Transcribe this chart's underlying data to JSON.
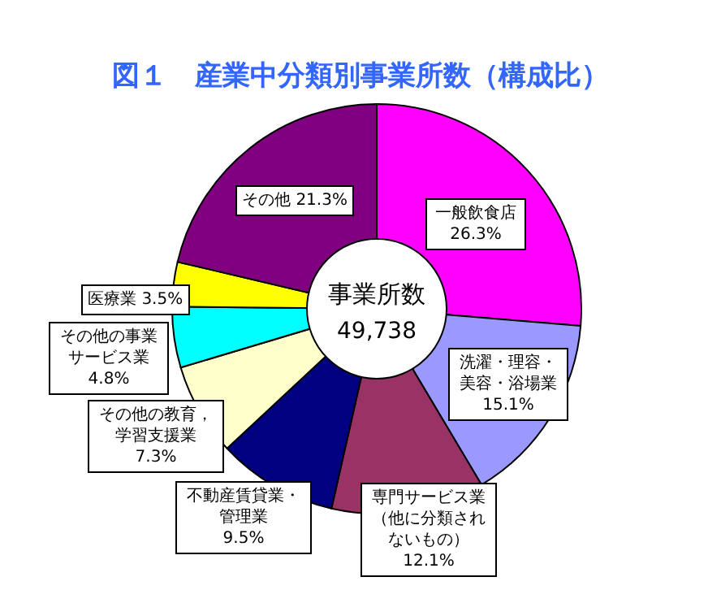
{
  "chart_data": {
    "type": "donut",
    "title": "図１　産業中分類別事業所数（構成比）",
    "categories": [
      "一般飲食店",
      "洗濯・理容・美容・浴場業",
      "専門サービス業（他に分類されないもの）",
      "不動産賃貸業・管理業",
      "その他の教育，学習支援業",
      "その他の事業サービス業",
      "医療業",
      "その他"
    ],
    "values": [
      26.3,
      15.1,
      12.1,
      9.5,
      7.3,
      4.8,
      3.5,
      21.3
    ],
    "value_labels": [
      "26.3%",
      "15.1%",
      "12.1%",
      "9.5%",
      "7.3%",
      "4.8%",
      "3.5%",
      "21.3%"
    ],
    "colors": [
      "#ff00ff",
      "#9999ff",
      "#993366",
      "#000080",
      "#ffffcc",
      "#00ffff",
      "#ffff00",
      "#800080"
    ],
    "annotations": [
      "事業所数",
      "49,738"
    ]
  }
}
